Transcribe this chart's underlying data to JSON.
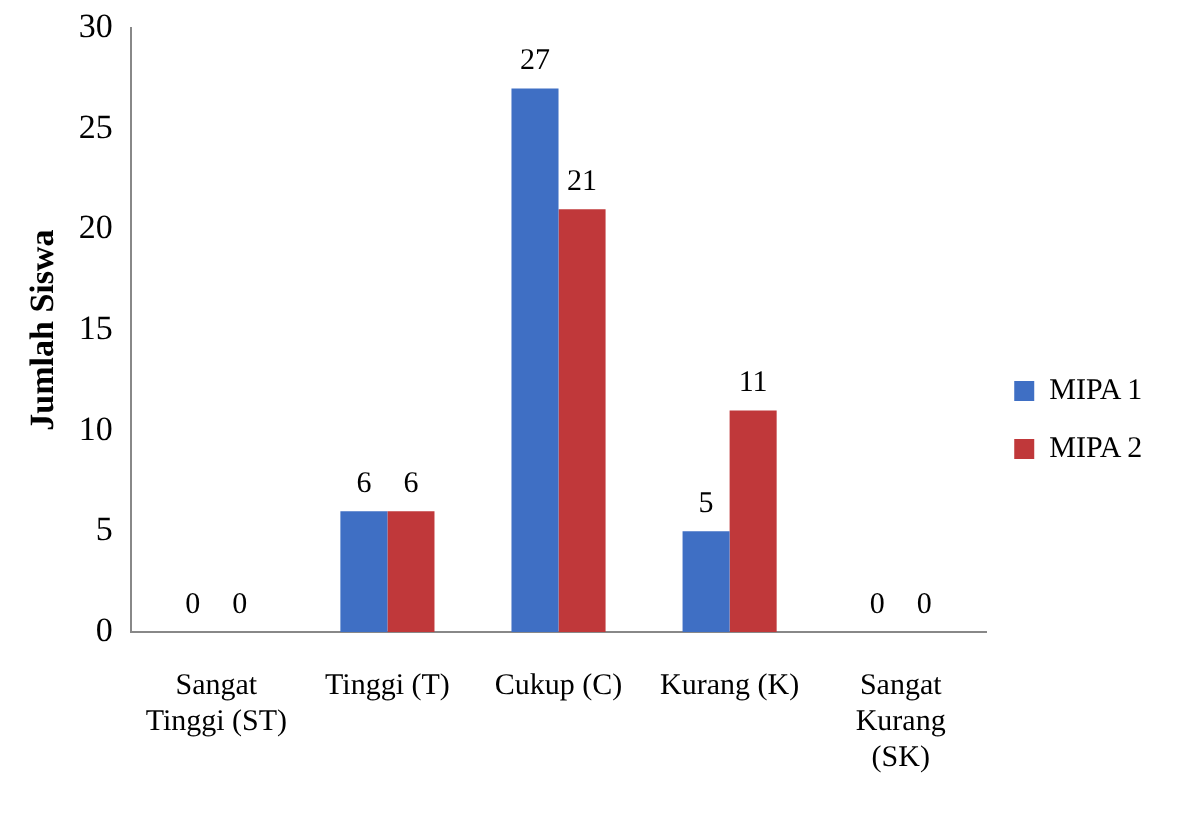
{
  "chart_data": {
    "type": "bar",
    "ylabel": "Jumlah Siswa",
    "categories": [
      "Sangat Tinggi (ST)",
      "Tinggi (T)",
      "Cukup (C)",
      "Kurang (K)",
      "Sangat Kurang (SK)"
    ],
    "series": [
      {
        "name": "MIPA 1",
        "color": "#3f6fc4",
        "values": [
          0,
          6,
          27,
          5,
          0
        ]
      },
      {
        "name": "MIPA 2",
        "color": "#c0383a",
        "values": [
          0,
          6,
          21,
          11,
          0
        ]
      }
    ],
    "ylim": [
      0,
      30
    ],
    "yticks": [
      0,
      5,
      10,
      15,
      20,
      25,
      30
    ],
    "grid": false,
    "legend": "right",
    "data_labels": true
  }
}
